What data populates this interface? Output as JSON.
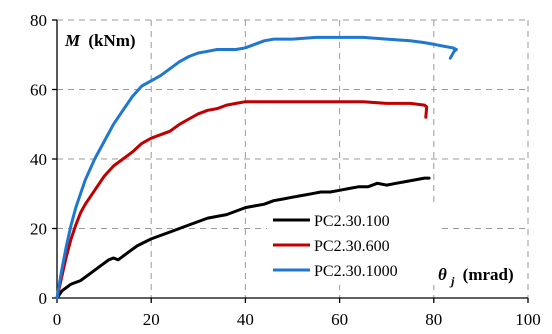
{
  "chart_data": {
    "type": "line",
    "xlim": [
      0,
      100
    ],
    "ylim": [
      0,
      80
    ],
    "xticks": [
      0,
      20,
      40,
      60,
      80,
      100
    ],
    "yticks": [
      0,
      20,
      40,
      60,
      80
    ],
    "grid": true,
    "legend_position": "bottom-right",
    "ylabel": {
      "symbol": "M",
      "unit": "(kNm)"
    },
    "xlabel": {
      "symbol": "θ",
      "subscript": "j",
      "unit": "(mrad)"
    },
    "series": [
      {
        "name": "PC2.30.100",
        "color": "#000000",
        "x": [
          0,
          1,
          2,
          3,
          5,
          7,
          9,
          11,
          12,
          13,
          14,
          15,
          17,
          20,
          24,
          28,
          32,
          36,
          38,
          40,
          42,
          44,
          46,
          48,
          50,
          52,
          54,
          56,
          58,
          60,
          62,
          64,
          66,
          68,
          70,
          72,
          74,
          76,
          78,
          79
        ],
        "y": [
          0,
          2,
          3,
          4,
          5,
          7,
          9,
          11,
          11.5,
          11,
          12,
          13,
          15,
          17,
          19,
          21,
          23,
          24,
          25,
          26,
          26.5,
          27,
          28,
          28.5,
          29,
          29.5,
          30,
          30.5,
          30.5,
          31,
          31.5,
          32,
          32,
          33,
          32.5,
          33,
          33.5,
          34,
          34.5,
          34.5
        ]
      },
      {
        "name": "PC2.30.600",
        "color": "#c00000",
        "x": [
          0,
          1,
          2,
          3,
          4,
          5,
          6,
          8,
          10,
          12,
          14,
          16,
          18,
          20,
          22,
          24,
          26,
          28,
          30,
          32,
          34,
          36,
          38,
          40,
          45,
          50,
          55,
          60,
          65,
          70,
          75,
          78,
          78.5,
          78.3
        ],
        "y": [
          0,
          6,
          12,
          17,
          21,
          24.5,
          27,
          31,
          35,
          38,
          40,
          42,
          44.5,
          46,
          47,
          48,
          50,
          51.5,
          53,
          54,
          54.5,
          55.5,
          56,
          56.5,
          56.5,
          56.5,
          56.5,
          56.5,
          56.5,
          56,
          56,
          55.5,
          55,
          52
        ]
      },
      {
        "name": "PC2.30.1000",
        "color": "#1f77d0",
        "x": [
          0,
          1,
          2,
          3,
          4,
          5,
          6,
          8,
          10,
          12,
          14,
          16,
          18,
          20,
          22,
          24,
          26,
          28,
          30,
          32,
          34,
          36,
          38,
          40,
          42,
          44,
          46,
          48,
          50,
          55,
          60,
          65,
          70,
          75,
          78,
          80,
          82,
          84,
          84.8,
          84.3,
          83.5
        ],
        "y": [
          0,
          8,
          15,
          21,
          26,
          30,
          34,
          40,
          45,
          50,
          54,
          58,
          61,
          62.5,
          64,
          66,
          68,
          69.5,
          70.5,
          71,
          71.5,
          71.5,
          71.5,
          72,
          73,
          74,
          74.5,
          74.5,
          74.5,
          75,
          75,
          75,
          74.5,
          74,
          73.5,
          73,
          72.5,
          72,
          71.5,
          71,
          69
        ]
      }
    ]
  }
}
